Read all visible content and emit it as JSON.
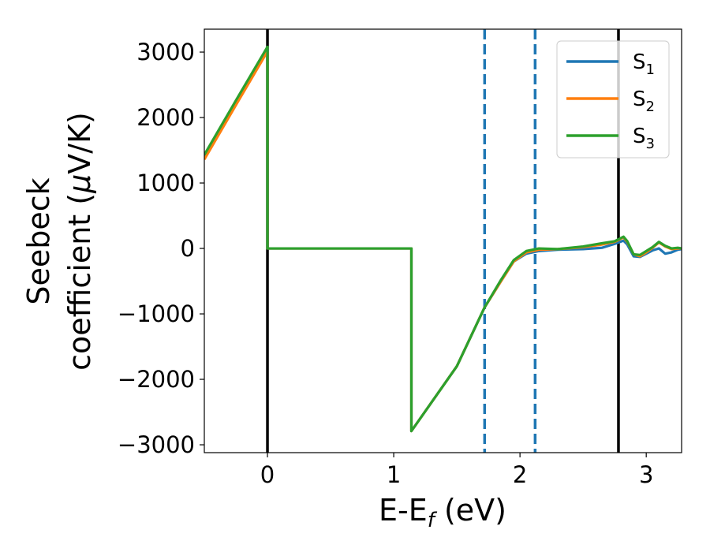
{
  "chart_data": {
    "type": "line",
    "title": "",
    "xlabel": "E-E",
    "xlabel_sub": "f",
    "xlabel_unit": " (eV)",
    "ylabel_line1": "Seebeck",
    "ylabel_line2": "coefficient  (",
    "ylabel_mu": "μ",
    "ylabel_unit": "V/K)",
    "xlim": [
      -0.5,
      3.28
    ],
    "ylim": [
      -3120,
      3350
    ],
    "xticks": [
      0,
      1,
      2,
      3
    ],
    "xtick_labels": [
      "0",
      "1",
      "2",
      "3"
    ],
    "yticks": [
      -3000,
      -2000,
      -1000,
      0,
      1000,
      2000,
      3000
    ],
    "ytick_labels": [
      "−3000",
      "−2000",
      "−1000",
      "0",
      "1000",
      "2000",
      "3000"
    ],
    "grid": false,
    "legend_position": "top-right",
    "vlines": [
      {
        "x": 0.0,
        "style": "solid",
        "color": "#000000"
      },
      {
        "x": 1.72,
        "style": "dashed",
        "color": "#1f77b4"
      },
      {
        "x": 2.12,
        "style": "dashed",
        "color": "#1f77b4"
      },
      {
        "x": 2.78,
        "style": "solid",
        "color": "#000000"
      }
    ],
    "series": [
      {
        "name": "S",
        "sub": "1",
        "color": "#1f77b4",
        "points": [
          [
            -0.5,
            1400
          ],
          [
            -0.25,
            2230
          ],
          [
            0.0,
            3050
          ],
          [
            0.0,
            0
          ],
          [
            1.14,
            0
          ],
          [
            1.14,
            -2790
          ],
          [
            1.5,
            -1800
          ],
          [
            1.72,
            -900
          ],
          [
            1.85,
            -500
          ],
          [
            1.95,
            -200
          ],
          [
            2.05,
            -80
          ],
          [
            2.15,
            -40
          ],
          [
            2.3,
            -20
          ],
          [
            2.5,
            -10
          ],
          [
            2.65,
            10
          ],
          [
            2.75,
            70
          ],
          [
            2.82,
            120
          ],
          [
            2.85,
            60
          ],
          [
            2.9,
            -120
          ],
          [
            2.95,
            -130
          ],
          [
            3.0,
            -80
          ],
          [
            3.05,
            -30
          ],
          [
            3.1,
            0
          ],
          [
            3.15,
            -80
          ],
          [
            3.2,
            -60
          ],
          [
            3.25,
            -20
          ],
          [
            3.28,
            -10
          ]
        ]
      },
      {
        "name": "S",
        "sub": "2",
        "color": "#ff7f0e",
        "points": [
          [
            -0.5,
            1360
          ],
          [
            -0.25,
            2190
          ],
          [
            0.0,
            3010
          ],
          [
            0.0,
            0
          ],
          [
            1.14,
            0
          ],
          [
            1.14,
            -2790
          ],
          [
            1.5,
            -1800
          ],
          [
            1.72,
            -900
          ],
          [
            1.85,
            -500
          ],
          [
            1.95,
            -200
          ],
          [
            2.05,
            -60
          ],
          [
            2.15,
            -20
          ],
          [
            2.3,
            -10
          ],
          [
            2.5,
            20
          ],
          [
            2.65,
            60
          ],
          [
            2.75,
            100
          ],
          [
            2.82,
            170
          ],
          [
            2.85,
            100
          ],
          [
            2.9,
            -90
          ],
          [
            2.95,
            -120
          ],
          [
            3.0,
            -60
          ],
          [
            3.05,
            10
          ],
          [
            3.1,
            90
          ],
          [
            3.15,
            30
          ],
          [
            3.2,
            -10
          ],
          [
            3.25,
            0
          ],
          [
            3.28,
            0
          ]
        ]
      },
      {
        "name": "S",
        "sub": "3",
        "color": "#2ca02c",
        "points": [
          [
            -0.5,
            1430
          ],
          [
            -0.25,
            2260
          ],
          [
            0.0,
            3080
          ],
          [
            0.0,
            0
          ],
          [
            1.14,
            0
          ],
          [
            1.14,
            -2790
          ],
          [
            1.5,
            -1800
          ],
          [
            1.72,
            -900
          ],
          [
            1.85,
            -480
          ],
          [
            1.95,
            -180
          ],
          [
            2.05,
            -40
          ],
          [
            2.15,
            0
          ],
          [
            2.3,
            -10
          ],
          [
            2.5,
            30
          ],
          [
            2.65,
            80
          ],
          [
            2.75,
            110
          ],
          [
            2.82,
            180
          ],
          [
            2.85,
            110
          ],
          [
            2.9,
            -90
          ],
          [
            2.95,
            -100
          ],
          [
            3.0,
            -40
          ],
          [
            3.05,
            20
          ],
          [
            3.1,
            100
          ],
          [
            3.15,
            40
          ],
          [
            3.2,
            0
          ],
          [
            3.25,
            10
          ],
          [
            3.28,
            0
          ]
        ]
      }
    ]
  }
}
